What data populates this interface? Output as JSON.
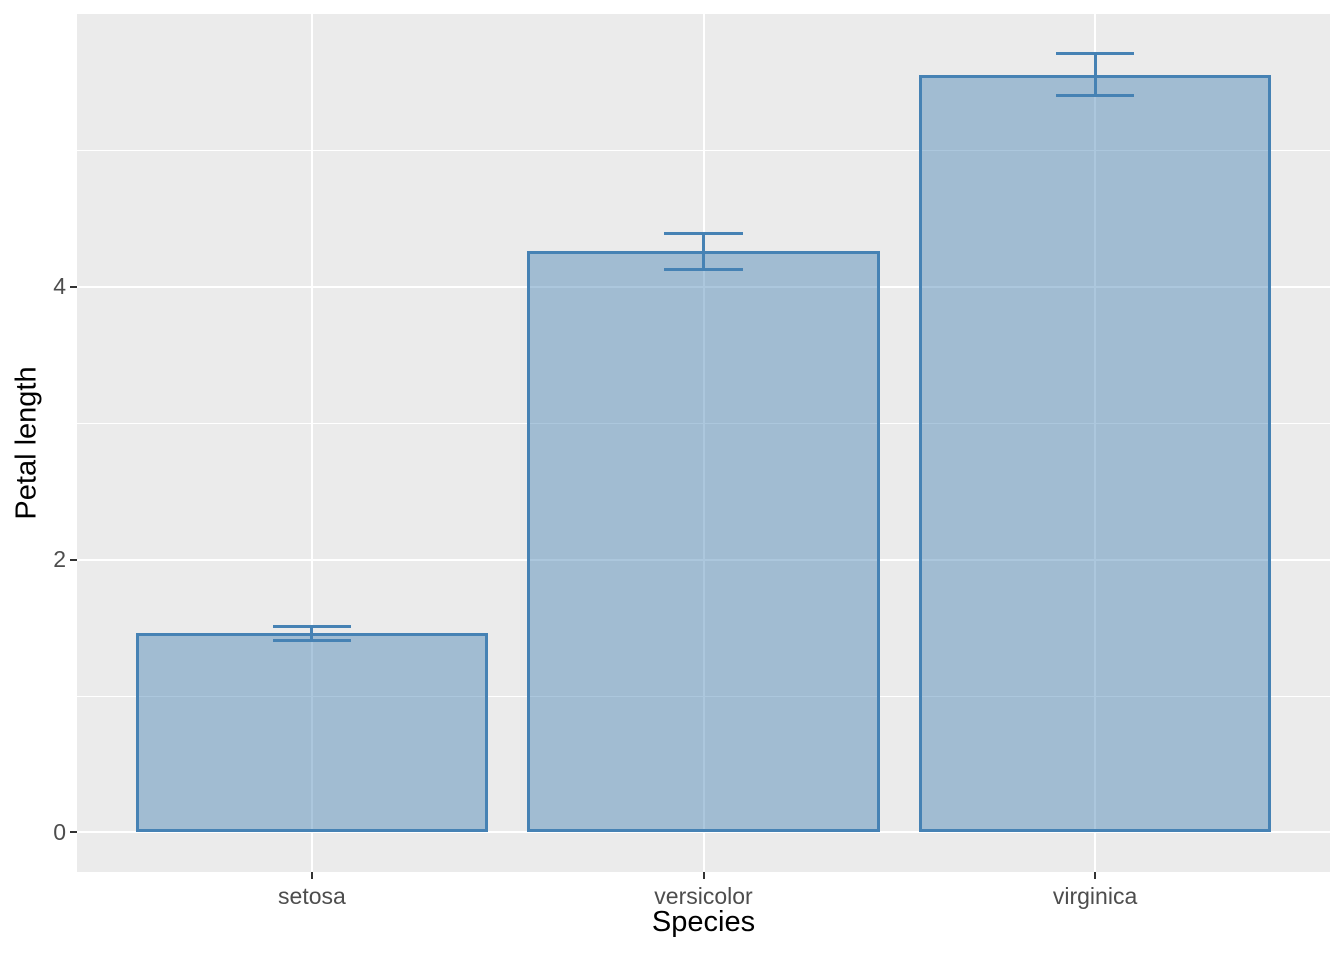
{
  "chart_data": {
    "type": "bar",
    "title": "",
    "xlabel": "Species",
    "ylabel": "Petal length",
    "categories": [
      "setosa",
      "versicolor",
      "virginica"
    ],
    "values": [
      1.46,
      4.26,
      5.55
    ],
    "error_bars": [
      {
        "ymin": 1.41,
        "ymax": 1.51
      },
      {
        "ymin": 4.13,
        "ymax": 4.39
      },
      {
        "ymin": 5.4,
        "ymax": 5.71
      }
    ],
    "yticks": [
      0,
      2,
      4
    ],
    "yticks_minor": [
      1,
      3,
      5
    ],
    "ylim": [
      -0.29,
      6.0
    ],
    "xlim_units": [
      0.4,
      3.6
    ],
    "bar_width_units": 0.9,
    "errorbar_cap_width_units": 0.2,
    "grid": true,
    "legend_position": "none",
    "style": {
      "panel_background": "#EBEBEB",
      "grid_color": "#FFFFFF",
      "bar_fill": "#4682B4",
      "bar_fill_opacity": 0.45,
      "bar_stroke": "#4682B4",
      "errorbar_color": "#4682B4",
      "tick_mark_color": "#333333",
      "tick_label_color": "#4D4D4D",
      "axis_title_color": "#000000"
    }
  }
}
